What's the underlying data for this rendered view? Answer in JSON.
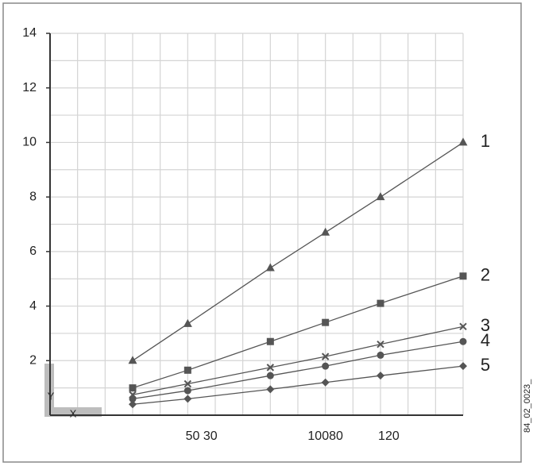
{
  "chart_data": {
    "type": "line",
    "x": [
      3,
      5,
      8,
      10,
      12,
      15
    ],
    "xlim": [
      0,
      15
    ],
    "xticks": [
      {
        "value": 5.5,
        "label": "50 30"
      },
      {
        "value": 10,
        "label": "10080"
      },
      {
        "value": 12.3,
        "label": "120"
      }
    ],
    "ylim": [
      0,
      14
    ],
    "yticks": [
      2,
      4,
      6,
      8,
      10,
      12,
      14
    ],
    "grid": true,
    "x_axis_label": "X",
    "y_axis_label": "Y",
    "side_note": "84_02_0023_",
    "series": [
      {
        "name": "1",
        "color": "#555555",
        "marker": "triangle",
        "values": [
          2,
          3.35,
          5.4,
          6.7,
          8,
          10
        ]
      },
      {
        "name": "2",
        "color": "#555555",
        "marker": "square",
        "values": [
          1,
          1.65,
          2.7,
          3.4,
          4.1,
          5.1
        ]
      },
      {
        "name": "3",
        "color": "#555555",
        "marker": "x",
        "values": [
          0.75,
          1.15,
          1.75,
          2.15,
          2.6,
          3.25
        ]
      },
      {
        "name": "4",
        "color": "#555555",
        "marker": "circle",
        "values": [
          0.6,
          0.9,
          1.45,
          1.8,
          2.2,
          2.7
        ]
      },
      {
        "name": "5",
        "color": "#555555",
        "marker": "diamond",
        "values": [
          0.4,
          0.6,
          0.95,
          1.2,
          1.45,
          1.8
        ]
      }
    ]
  }
}
